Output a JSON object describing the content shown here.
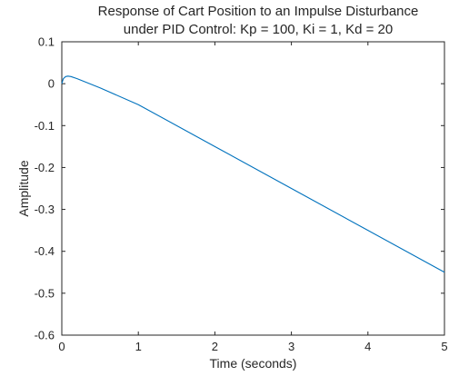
{
  "chart_data": {
    "type": "line",
    "title": "Response of Cart Position to an Impulse Disturbance",
    "subtitle": "under PID Control: Kp = 100, Ki = 1, Kd = 20",
    "xlabel": "Time (seconds)",
    "ylabel": "Amplitude",
    "xlim": [
      0,
      5
    ],
    "ylim": [
      -0.6,
      0.1
    ],
    "xticks": [
      0,
      1,
      2,
      3,
      4,
      5
    ],
    "xtick_labels": [
      "0",
      "1",
      "2",
      "3",
      "4",
      "5"
    ],
    "yticks": [
      0.1,
      0,
      -0.1,
      -0.2,
      -0.3,
      -0.4,
      -0.5,
      -0.6
    ],
    "ytick_labels": [
      "0.1",
      "0",
      "-0.1",
      "-0.2",
      "-0.3",
      "-0.4",
      "-0.5",
      "-0.6"
    ],
    "grid": false,
    "series": [
      {
        "color": "#0072BD",
        "x": [
          0,
          0.02,
          0.05,
          0.08,
          0.12,
          0.2,
          0.5,
          1,
          2,
          3,
          4,
          5
        ],
        "y": [
          0,
          0.012,
          0.017,
          0.018,
          0.017,
          0.012,
          -0.01,
          -0.05,
          -0.15,
          -0.25,
          -0.35,
          -0.45
        ]
      }
    ]
  }
}
